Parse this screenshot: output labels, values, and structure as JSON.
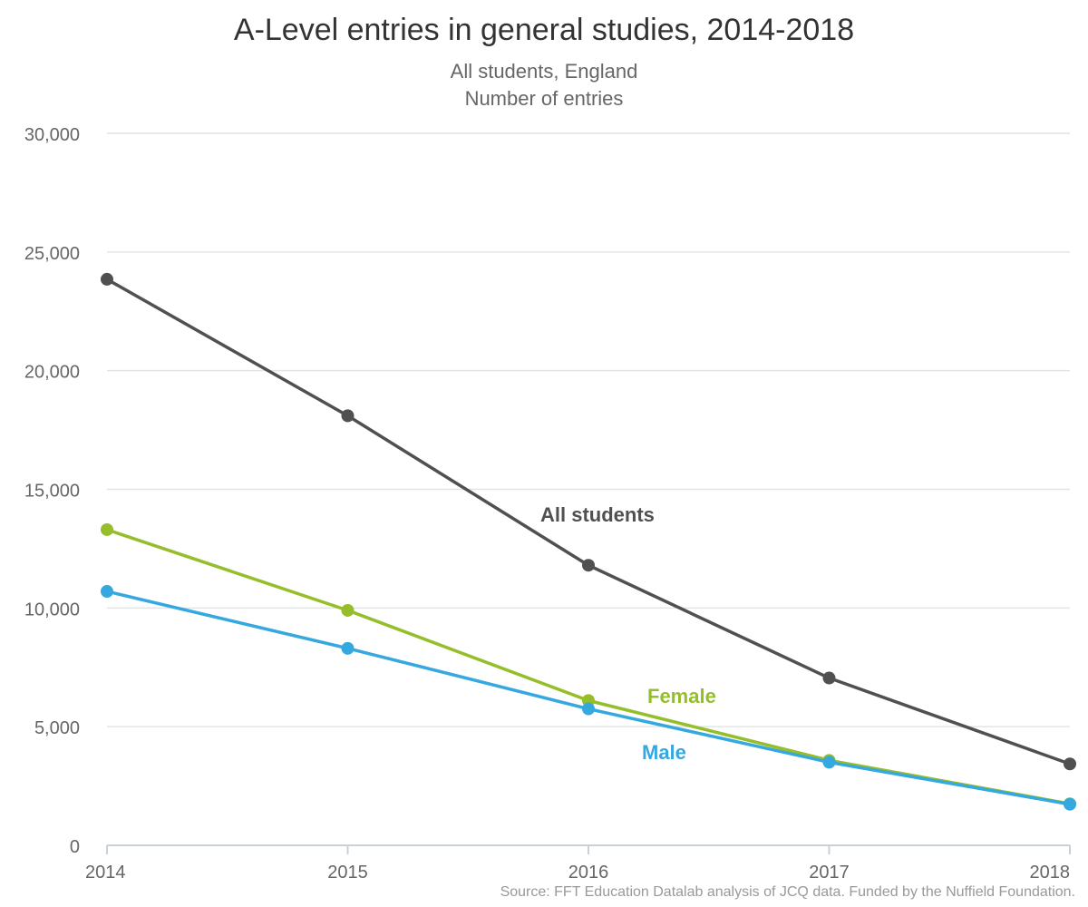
{
  "chart_data": {
    "type": "line",
    "title": "A-Level entries in general studies, 2014-2018",
    "subtitle": "All students, England",
    "subtitle2": "Number of entries",
    "source": "Source: FFT Education Datalab analysis of JCQ data. Funded by the Nuffield Foundation.",
    "x": [
      2014,
      2015,
      2016,
      2017,
      2018
    ],
    "x_tick_labels": [
      "2014",
      "2015",
      "2016",
      "2017",
      "2018"
    ],
    "ylim": [
      0,
      30000
    ],
    "y_ticks": [
      0,
      5000,
      10000,
      15000,
      20000,
      25000,
      30000
    ],
    "y_tick_labels": [
      "0",
      "5,000",
      "10,000",
      "15,000",
      "20,000",
      "25,000",
      "30,000"
    ],
    "grid": true,
    "legend": "inline labels",
    "series": [
      {
        "name": "All students",
        "key": "all",
        "color": "#505050",
        "values": [
          23850,
          18100,
          11800,
          7050,
          3430
        ]
      },
      {
        "name": "Female",
        "key": "female",
        "color": "#95be2a",
        "values": [
          13300,
          9900,
          6100,
          3580,
          1750
        ]
      },
      {
        "name": "Male",
        "key": "male",
        "color": "#34a8df",
        "values": [
          10700,
          8300,
          5750,
          3500,
          1730
        ]
      }
    ]
  }
}
